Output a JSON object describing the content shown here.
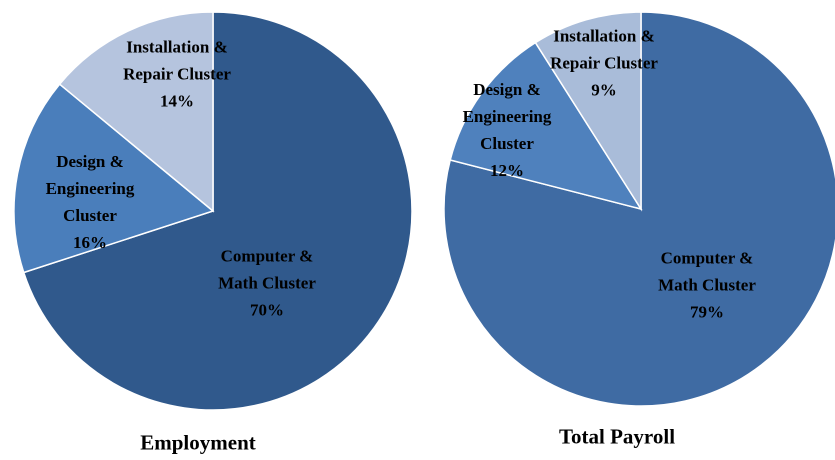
{
  "chart_data": [
    {
      "type": "pie",
      "title": "Employment",
      "categories": [
        "Computer & Math Cluster",
        "Design & Engineering Cluster",
        "Installation & Repair Cluster"
      ],
      "values": [
        70,
        16,
        14
      ],
      "value_labels": [
        "70%",
        "16%",
        "14%"
      ],
      "colors": [
        "#30598c",
        "#4a7ebb",
        "#b5c4de"
      ]
    },
    {
      "type": "pie",
      "title": "Total Payroll",
      "categories": [
        "Computer & Math Cluster",
        "Design & Engineering Cluster",
        "Installation & Repair Cluster"
      ],
      "values": [
        79,
        12,
        9
      ],
      "value_labels": [
        "79%",
        "12%",
        "9%"
      ],
      "colors": [
        "#3f6ba3",
        "#4f81bd",
        "#a9bcd9"
      ]
    }
  ]
}
